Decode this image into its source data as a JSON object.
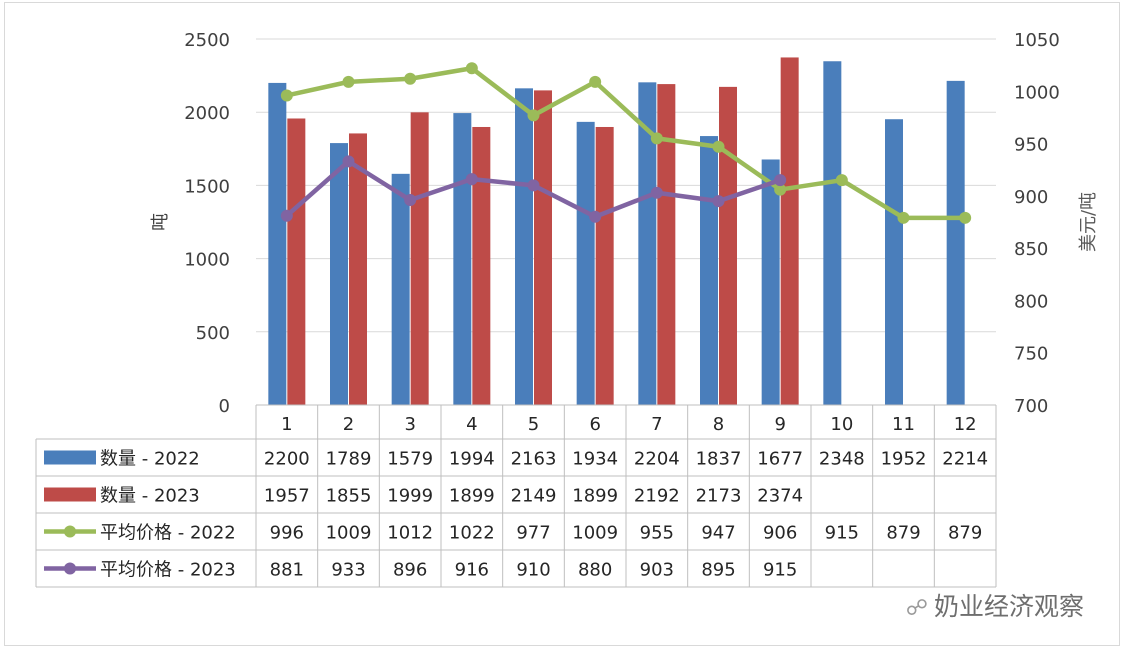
{
  "chart_data": {
    "type": "bar",
    "categories": [
      "1",
      "2",
      "3",
      "4",
      "5",
      "6",
      "7",
      "8",
      "9",
      "10",
      "11",
      "12"
    ],
    "series": [
      {
        "name": "数量 - 2022",
        "type": "bar",
        "axis": "left",
        "color": "#4a7ebb",
        "values": [
          2200,
          1789,
          1579,
          1994,
          2163,
          1934,
          2204,
          1837,
          1677,
          2348,
          1952,
          2214
        ]
      },
      {
        "name": "数量 - 2023",
        "type": "bar",
        "axis": "left",
        "color": "#be4b48",
        "values": [
          1957,
          1855,
          1999,
          1899,
          2149,
          1899,
          2192,
          2173,
          2374,
          null,
          null,
          null
        ]
      },
      {
        "name": "平均价格 - 2022",
        "type": "line",
        "axis": "right",
        "color": "#9bbb59",
        "values": [
          996,
          1009,
          1012,
          1022,
          977,
          1009,
          955,
          947,
          906,
          915,
          879,
          879
        ]
      },
      {
        "name": "平均价格 - 2023",
        "type": "line",
        "axis": "right",
        "color": "#8064a2",
        "values": [
          881,
          933,
          896,
          916,
          910,
          880,
          903,
          895,
          915,
          null,
          null,
          null
        ]
      }
    ],
    "ylabel": "吨",
    "y2label": "美元/吨",
    "ylim": [
      0,
      2500
    ],
    "y2lim": [
      700,
      1050
    ],
    "yticks": [
      0,
      500,
      1000,
      1500,
      2000,
      2500
    ],
    "y2ticks": [
      700,
      750,
      800,
      850,
      900,
      950,
      1000,
      1050
    ],
    "grid": true,
    "legend": "data-table-below"
  },
  "watermark": "奶业经济观察"
}
